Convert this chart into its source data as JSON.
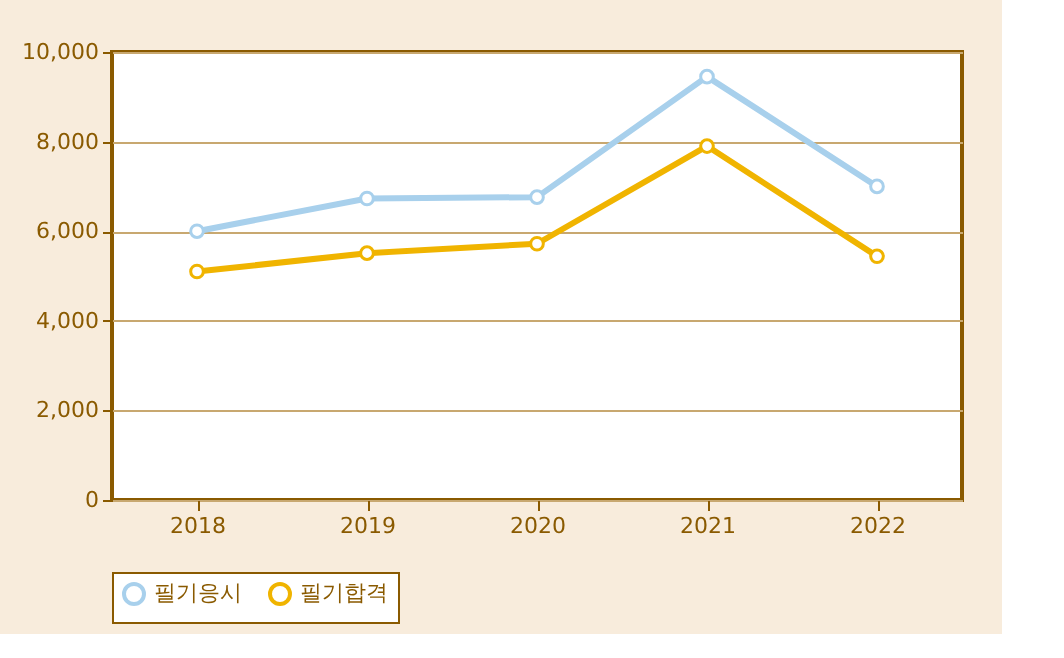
{
  "chart_data": {
    "type": "line",
    "categories": [
      "2018",
      "2019",
      "2020",
      "2021",
      "2022"
    ],
    "series": [
      {
        "name": "필기응시",
        "color": "#a8d0ec",
        "values": [
          6000,
          6730,
          6760,
          9450,
          7000
        ]
      },
      {
        "name": "필기합격",
        "color": "#f0b400",
        "values": [
          5100,
          5510,
          5720,
          7900,
          5440
        ]
      }
    ],
    "ylim": [
      0,
      10000
    ],
    "yticks": [
      0,
      {
        "value": 2000,
        "label": "2,000"
      },
      {
        "value": 4000,
        "label": "4,000"
      },
      {
        "value": 6000,
        "label": "6,000"
      },
      {
        "value": 8000,
        "label": "8,000"
      },
      {
        "value": 10000,
        "label": "10,000"
      }
    ],
    "grid": "y",
    "legend": "bottom",
    "marker": "circle",
    "line_style": "solid"
  }
}
